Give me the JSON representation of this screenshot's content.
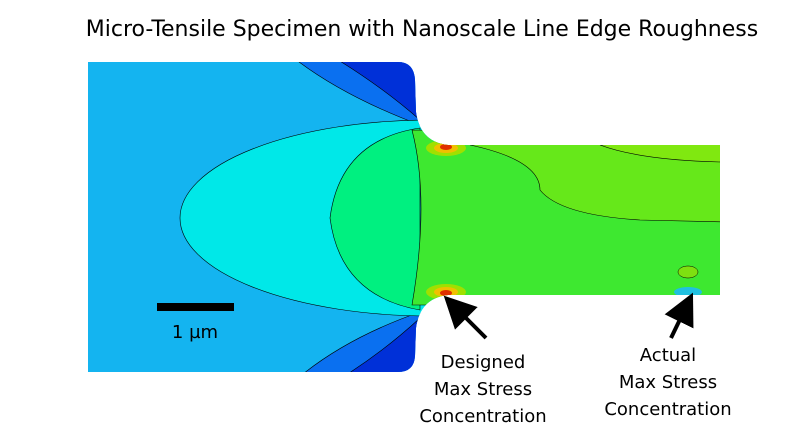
{
  "title": "Micro-Tensile Specimen with Nanoscale Line Edge Roughness",
  "scale_bar": {
    "label": "1 µm"
  },
  "annotations": [
    {
      "lines": [
        "Designed",
        "Max Stress",
        "Concentration"
      ]
    },
    {
      "lines": [
        "Actual",
        "Max Stress",
        "Concentration"
      ]
    }
  ]
}
